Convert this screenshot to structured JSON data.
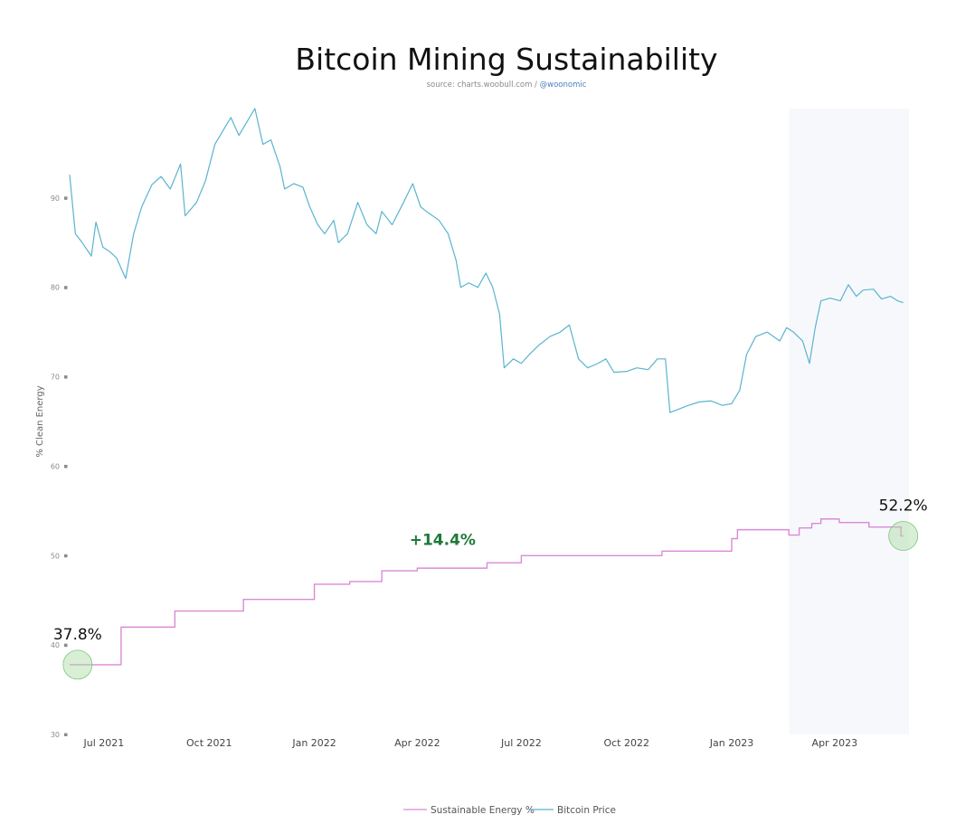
{
  "chart_data": {
    "type": "line",
    "title": "Bitcoin Mining Sustainability",
    "subtitle_source": "source: charts.woobull.com / ",
    "subtitle_handle": "@woonomic",
    "ylabel": "% Clean Energy",
    "ylim": [
      30,
      100
    ],
    "yticks": [
      {
        "value": 30,
        "label": "30"
      },
      {
        "value": 40,
        "label": "40"
      },
      {
        "value": 50,
        "label": "50"
      },
      {
        "value": 60,
        "label": "60"
      },
      {
        "value": 70,
        "label": "70"
      },
      {
        "value": 80,
        "label": "80"
      },
      {
        "value": 90,
        "label": "90"
      }
    ],
    "xlim": [
      "2021-06-01",
      "2023-06-05"
    ],
    "xticks": [
      {
        "date": "2021-07-01",
        "label": "Jul 2021"
      },
      {
        "date": "2021-10-01",
        "label": "Oct 2021"
      },
      {
        "date": "2022-01-01",
        "label": "Jan 2022"
      },
      {
        "date": "2022-04-01",
        "label": "Apr 2022"
      },
      {
        "date": "2022-07-01",
        "label": "Jul 2022"
      },
      {
        "date": "2022-10-01",
        "label": "Oct 2022"
      },
      {
        "date": "2023-01-01",
        "label": "Jan 2023"
      },
      {
        "date": "2023-04-01",
        "label": "Apr 2023"
      }
    ],
    "highlight_region": {
      "from": "2023-02-20",
      "to": "2023-06-05"
    },
    "grid": false,
    "legend_position": "bottom-center",
    "series": [
      {
        "name": "Sustainable Energy %",
        "color": "#d98ad6",
        "step": true,
        "points": [
          [
            "2021-06-01",
            37.8
          ],
          [
            "2021-07-16",
            42.0
          ],
          [
            "2021-09-01",
            43.8
          ],
          [
            "2021-10-31",
            45.1
          ],
          [
            "2022-01-01",
            46.8
          ],
          [
            "2022-02-01",
            47.1
          ],
          [
            "2022-03-01",
            48.3
          ],
          [
            "2022-04-01",
            48.6
          ],
          [
            "2022-06-01",
            49.2
          ],
          [
            "2022-07-01",
            50.0
          ],
          [
            "2022-11-01",
            50.5
          ],
          [
            "2023-01-01",
            51.9
          ],
          [
            "2023-01-06",
            52.9
          ],
          [
            "2023-02-20",
            52.3
          ],
          [
            "2023-03-01",
            53.1
          ],
          [
            "2023-03-12",
            53.6
          ],
          [
            "2023-03-20",
            54.1
          ],
          [
            "2023-04-05",
            53.7
          ],
          [
            "2023-05-01",
            53.2
          ],
          [
            "2023-05-29",
            52.2
          ],
          [
            "2023-05-31",
            52.2
          ]
        ]
      },
      {
        "name": "Bitcoin Price",
        "color": "#5ab4cf",
        "step": false,
        "points": [
          [
            "2021-06-01",
            92.6
          ],
          [
            "2021-06-06",
            86.0
          ],
          [
            "2021-06-12",
            85.0
          ],
          [
            "2021-06-20",
            83.5
          ],
          [
            "2021-06-24",
            87.3
          ],
          [
            "2021-06-30",
            84.5
          ],
          [
            "2021-07-06",
            84.0
          ],
          [
            "2021-07-12",
            83.3
          ],
          [
            "2021-07-20",
            81.0
          ],
          [
            "2021-07-27",
            86.0
          ],
          [
            "2021-08-03",
            89.0
          ],
          [
            "2021-08-12",
            91.5
          ],
          [
            "2021-08-20",
            92.4
          ],
          [
            "2021-08-28",
            91.0
          ],
          [
            "2021-09-06",
            93.8
          ],
          [
            "2021-09-10",
            88.0
          ],
          [
            "2021-09-20",
            89.5
          ],
          [
            "2021-09-28",
            92.0
          ],
          [
            "2021-10-06",
            96.0
          ],
          [
            "2021-10-13",
            97.5
          ],
          [
            "2021-10-20",
            99.0
          ],
          [
            "2021-10-27",
            97.0
          ],
          [
            "2021-11-03",
            98.5
          ],
          [
            "2021-11-10",
            100.0
          ],
          [
            "2021-11-17",
            96.0
          ],
          [
            "2021-11-24",
            96.5
          ],
          [
            "2021-12-02",
            93.5
          ],
          [
            "2021-12-06",
            91.0
          ],
          [
            "2021-12-14",
            91.6
          ],
          [
            "2021-12-22",
            91.2
          ],
          [
            "2021-12-28",
            89.0
          ],
          [
            "2022-01-04",
            87.0
          ],
          [
            "2022-01-10",
            86.0
          ],
          [
            "2022-01-18",
            87.5
          ],
          [
            "2022-01-22",
            85.0
          ],
          [
            "2022-01-30",
            86.0
          ],
          [
            "2022-02-08",
            89.5
          ],
          [
            "2022-02-16",
            87.0
          ],
          [
            "2022-02-24",
            86.0
          ],
          [
            "2022-03-01",
            88.5
          ],
          [
            "2022-03-10",
            87.0
          ],
          [
            "2022-03-20",
            89.5
          ],
          [
            "2022-03-28",
            91.6
          ],
          [
            "2022-04-04",
            89.0
          ],
          [
            "2022-04-10",
            88.4
          ],
          [
            "2022-04-20",
            87.5
          ],
          [
            "2022-04-28",
            86.0
          ],
          [
            "2022-05-05",
            83.0
          ],
          [
            "2022-05-09",
            80.0
          ],
          [
            "2022-05-16",
            80.5
          ],
          [
            "2022-05-24",
            80.0
          ],
          [
            "2022-05-31",
            81.6
          ],
          [
            "2022-06-06",
            80.0
          ],
          [
            "2022-06-12",
            77.0
          ],
          [
            "2022-06-16",
            71.0
          ],
          [
            "2022-06-24",
            72.0
          ],
          [
            "2022-07-01",
            71.5
          ],
          [
            "2022-07-08",
            72.5
          ],
          [
            "2022-07-16",
            73.5
          ],
          [
            "2022-07-26",
            74.5
          ],
          [
            "2022-08-04",
            75.0
          ],
          [
            "2022-08-12",
            75.8
          ],
          [
            "2022-08-20",
            72.0
          ],
          [
            "2022-08-28",
            71.0
          ],
          [
            "2022-09-06",
            71.5
          ],
          [
            "2022-09-13",
            72.0
          ],
          [
            "2022-09-20",
            70.5
          ],
          [
            "2022-10-01",
            70.6
          ],
          [
            "2022-10-10",
            71.0
          ],
          [
            "2022-10-20",
            70.8
          ],
          [
            "2022-10-28",
            72.0
          ],
          [
            "2022-11-04",
            72.0
          ],
          [
            "2022-11-08",
            66.0
          ],
          [
            "2022-11-16",
            66.4
          ],
          [
            "2022-11-24",
            66.8
          ],
          [
            "2022-12-04",
            67.2
          ],
          [
            "2022-12-14",
            67.3
          ],
          [
            "2022-12-24",
            66.8
          ],
          [
            "2023-01-01",
            67.0
          ],
          [
            "2023-01-08",
            68.5
          ],
          [
            "2023-01-14",
            72.5
          ],
          [
            "2023-01-22",
            74.5
          ],
          [
            "2023-02-01",
            75.0
          ],
          [
            "2023-02-12",
            74.0
          ],
          [
            "2023-02-18",
            75.5
          ],
          [
            "2023-02-24",
            75.0
          ],
          [
            "2023-03-04",
            74.0
          ],
          [
            "2023-03-10",
            71.5
          ],
          [
            "2023-03-15",
            75.5
          ],
          [
            "2023-03-20",
            78.5
          ],
          [
            "2023-03-28",
            78.8
          ],
          [
            "2023-04-06",
            78.5
          ],
          [
            "2023-04-13",
            80.3
          ],
          [
            "2023-04-20",
            79.0
          ],
          [
            "2023-04-26",
            79.7
          ],
          [
            "2023-05-05",
            79.8
          ],
          [
            "2023-05-12",
            78.7
          ],
          [
            "2023-05-20",
            79.0
          ],
          [
            "2023-05-26",
            78.5
          ],
          [
            "2023-05-31",
            78.3
          ]
        ]
      }
    ],
    "annotations": [
      {
        "id": "start",
        "label": "37.8%",
        "date": "2021-06-08",
        "value": 37.8,
        "style": "value"
      },
      {
        "id": "end",
        "label": "52.2%",
        "date": "2023-05-31",
        "value": 52.2,
        "style": "value"
      },
      {
        "id": "gain",
        "label": "+14.4%",
        "date": "2022-04-01",
        "value": 51.3,
        "style": "gain"
      }
    ],
    "marker_color": "#a8dca2"
  }
}
